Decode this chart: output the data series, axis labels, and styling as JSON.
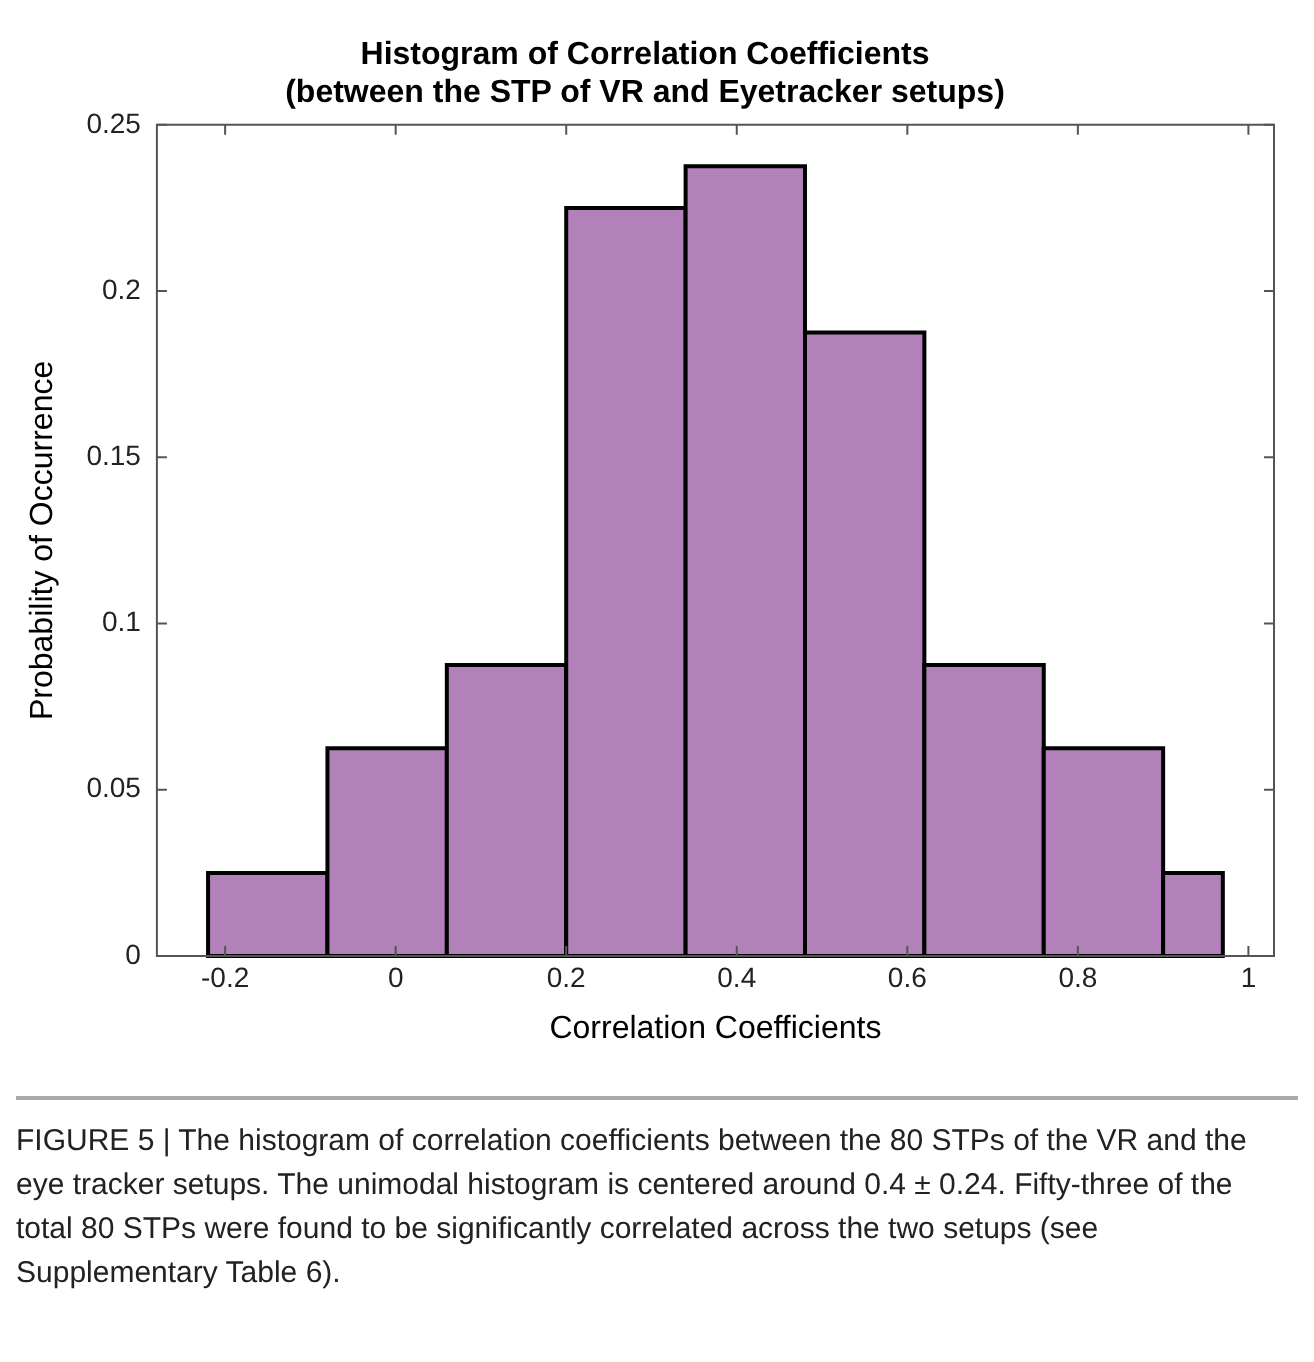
{
  "chart_data": {
    "type": "histogram",
    "title": "Histogram of Correlation Coefficients\n(between the STP of VR and Eyetracker setups)",
    "xlabel": "Correlation Coefficients",
    "ylabel": "Probability of Occurrence",
    "bins": [
      -0.22,
      -0.08,
      0.06,
      0.2,
      0.34,
      0.48,
      0.62,
      0.76,
      0.9,
      0.97
    ],
    "values": [
      0.025,
      0.0625,
      0.0875,
      0.225,
      0.2375,
      0.1875,
      0.0875,
      0.0625,
      0.025
    ],
    "color": "#b381ba",
    "xlim": [
      -0.28,
      1.03
    ],
    "xticks": [
      -0.2,
      0,
      0.2,
      0.4,
      0.6,
      0.8,
      1
    ],
    "ylim": [
      0,
      0.25
    ],
    "yticks": [
      0,
      0.05,
      0.1,
      0.15,
      0.2,
      0.25
    ],
    "annotations": [
      "FIGURE 5 | The histogram of correlation coefficients between the 80 STPs of the VR and the eye tracker setups. The unimodal histogram is centered around 0.4 ± 0.24. Fifty-three of the total 80 STPs were found to be significantly correlated across the two setups (see Supplementary Table 6)."
    ]
  }
}
